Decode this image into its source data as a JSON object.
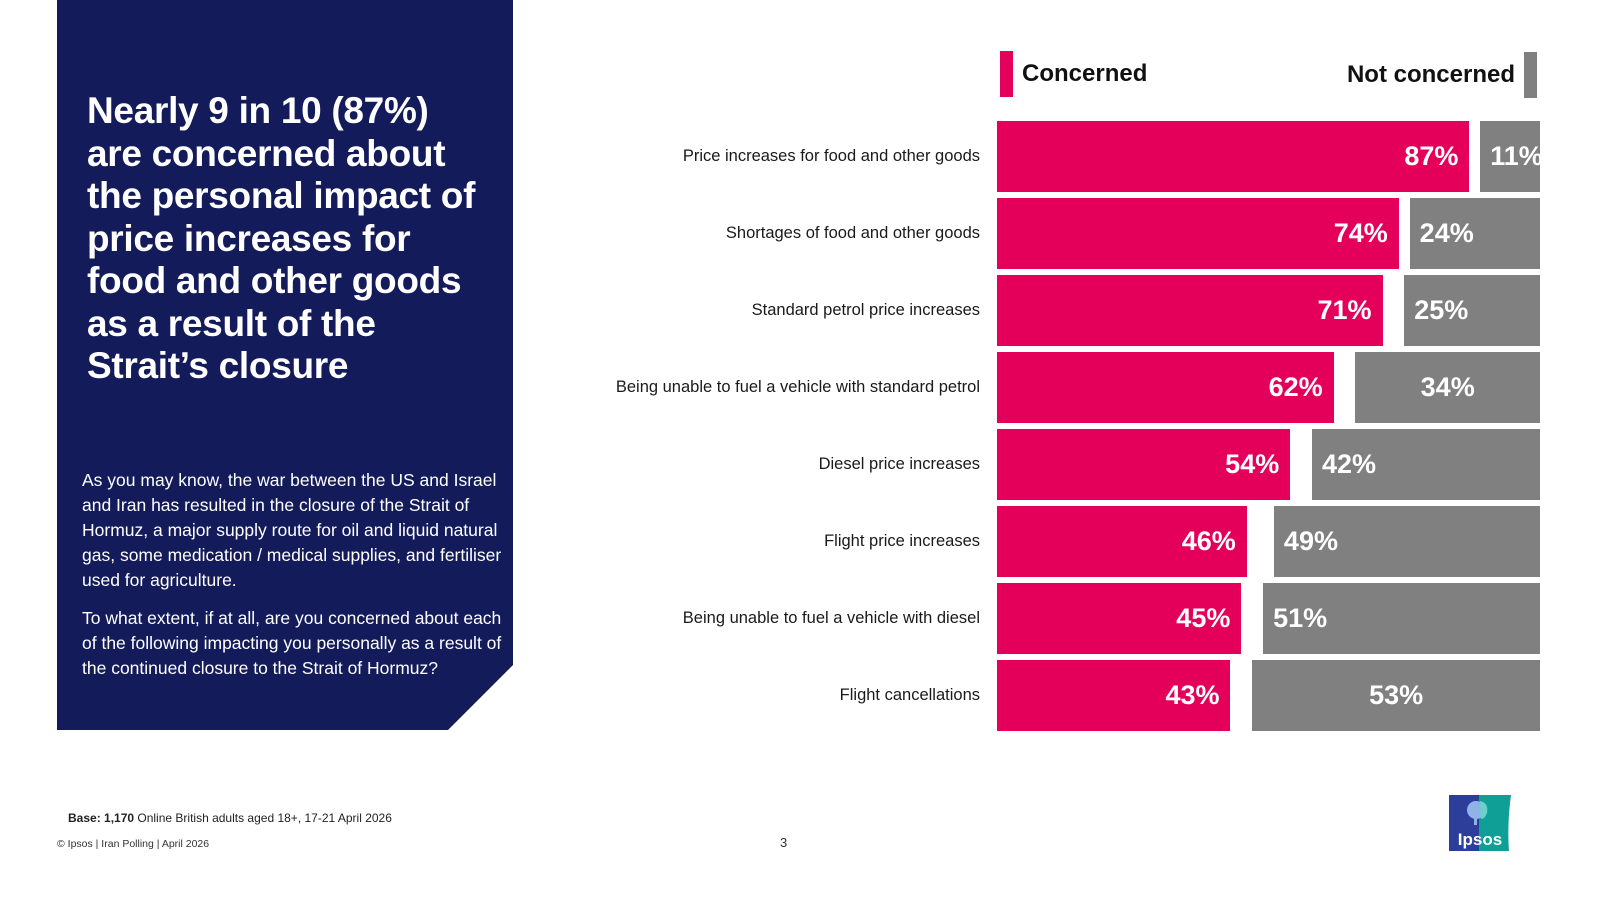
{
  "left_panel": {
    "headline": "Nearly 9 in 10 (87%) are concerned about the personal impact of price increases for food and other goods as a result of the Strait’s closure",
    "paragraphs": [
      "As you may know, the war between the US and Israel and Iran has resulted in the closure of the Strait of Hormuz, a major supply route for oil and liquid natural gas, some medication / medical supplies, and fertiliser used for agriculture.",
      "To what extent, if at all, are you concerned about each of the following impacting you personally as a result of the continued closure to the Strait of Hormuz?"
    ],
    "background_color": "#141b5a"
  },
  "chart_data": {
    "type": "bar",
    "orientation": "horizontal",
    "stacked_diverging": true,
    "title": "",
    "xlabel": "",
    "ylabel": "",
    "xlim": [
      0,
      100
    ],
    "grid": false,
    "legend_placement": "top",
    "categories": [
      "Price increases for food and other goods",
      "Shortages of food and other goods",
      "Standard petrol price increases",
      "Being unable to fuel a vehicle with standard petrol",
      "Diesel price increases",
      "Flight price increases",
      "Being unable to fuel a vehicle with diesel",
      "Flight cancellations"
    ],
    "series": [
      {
        "name": "Concerned",
        "color": "#e4005a",
        "values": [
          87,
          74,
          71,
          62,
          54,
          46,
          45,
          43
        ]
      },
      {
        "name": "Not concerned",
        "color": "#808080",
        "values": [
          11,
          24,
          25,
          34,
          42,
          49,
          51,
          53
        ]
      }
    ],
    "value_suffix": "%"
  },
  "legend": {
    "concerned_label": "Concerned",
    "not_concerned_label": "Not concerned"
  },
  "footer": {
    "base_label": "Base: 1,170",
    "base_text": " Online British adults aged 18+, 17-21 April 2026",
    "copyright": "© Ipsos | Iran Polling | April 2026",
    "page_number": "3",
    "logo_text": "Ipsos"
  }
}
